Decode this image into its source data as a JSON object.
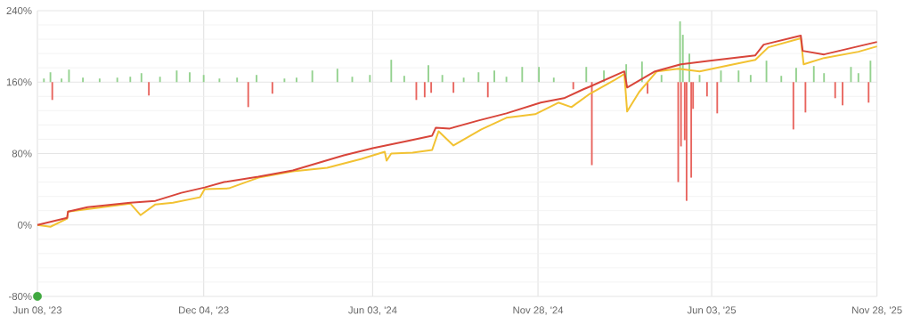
{
  "chart_data": {
    "type": "line",
    "xlim": [
      "2023-06-08",
      "2025-11-28"
    ],
    "ylim": [
      -80,
      240
    ],
    "xticks": [
      {
        "value": "2023-06-08",
        "label": "Jun 08, '23"
      },
      {
        "value": "2023-12-04",
        "label": "Dec 04, '23"
      },
      {
        "value": "2024-06-03",
        "label": "Jun 03, '24"
      },
      {
        "value": "2024-11-28",
        "label": "Nov 28, '24"
      },
      {
        "value": "2025-06-03",
        "label": "Jun 03, '25"
      },
      {
        "value": "2025-11-28",
        "label": "Nov 28, '25"
      }
    ],
    "yticks": [
      {
        "value": -80,
        "label": "-80%"
      },
      {
        "value": 0,
        "label": "0%"
      },
      {
        "value": 80,
        "label": "80%"
      },
      {
        "value": 160,
        "label": "160%"
      },
      {
        "value": 240,
        "label": "240%"
      }
    ],
    "grid": true,
    "series": [
      {
        "type": "bar",
        "color": "#93d18e",
        "x": [
          "2023-06-15",
          "2023-06-22",
          "2023-07-04",
          "2023-07-12",
          "2023-07-27",
          "2023-08-14",
          "2023-09-02",
          "2023-09-16",
          "2023-09-28",
          "2023-10-18",
          "2023-11-05",
          "2023-11-19",
          "2023-12-04",
          "2023-12-21",
          "2024-01-09",
          "2024-01-30",
          "2024-02-29",
          "2024-03-13",
          "2024-03-30",
          "2024-04-26",
          "2024-05-12",
          "2024-05-31",
          "2024-06-23",
          "2024-07-07",
          "2024-08-02",
          "2024-08-17",
          "2024-09-09",
          "2024-09-25",
          "2024-10-12",
          "2024-10-25",
          "2024-11-11",
          "2024-11-29",
          "2024-12-15",
          "2025-01-19",
          "2025-02-07",
          "2025-03-03",
          "2025-03-20",
          "2025-04-10",
          "2025-04-30",
          "2025-05-03",
          "2025-05-10",
          "2025-05-21",
          "2025-06-13",
          "2025-07-02",
          "2025-07-15",
          "2025-08-01",
          "2025-08-17",
          "2025-09-02",
          "2025-09-21",
          "2025-10-02",
          "2025-10-31",
          "2025-11-08",
          "2025-11-21"
        ],
        "base": [
          160,
          160,
          160,
          160,
          160,
          160,
          160,
          160,
          160,
          160,
          160,
          160,
          160,
          160,
          160,
          160,
          160,
          160,
          160,
          160,
          160,
          160,
          160,
          160,
          160,
          160,
          160,
          160,
          160,
          160,
          160,
          160,
          160,
          160,
          160,
          160,
          160,
          160,
          160,
          160,
          160,
          160,
          160,
          160,
          160,
          160,
          160,
          160,
          160,
          160,
          160,
          160,
          160
        ],
        "values": [
          4,
          11,
          4,
          14,
          5,
          4,
          5,
          6,
          10,
          6,
          13,
          11,
          8,
          4,
          5,
          8,
          4,
          5,
          13,
          15,
          6,
          8,
          25,
          7,
          19,
          8,
          5,
          11,
          13,
          6,
          17,
          17,
          5,
          17,
          13,
          20,
          23,
          8,
          68,
          53,
          32,
          8,
          13,
          13,
          8,
          24,
          7,
          16,
          18,
          10,
          17,
          10,
          24
        ]
      },
      {
        "type": "bar",
        "color": "#e8645e",
        "x": [
          "2023-06-24",
          "2023-10-06",
          "2024-01-21",
          "2024-02-16",
          "2024-07-20",
          "2024-07-29",
          "2024-08-05",
          "2024-08-29",
          "2024-10-05",
          "2025-01-05",
          "2025-01-25",
          "2025-03-26",
          "2025-04-28",
          "2025-05-01",
          "2025-05-05",
          "2025-05-07",
          "2025-05-12",
          "2025-05-14",
          "2025-05-29",
          "2025-06-09",
          "2025-08-30",
          "2025-09-12",
          "2025-10-14",
          "2025-10-22",
          "2025-11-19"
        ],
        "base": [
          160,
          160,
          160,
          160,
          160,
          160,
          160,
          160,
          160,
          160,
          160,
          160,
          160,
          160,
          160,
          160,
          160,
          160,
          160,
          160,
          160,
          160,
          160,
          160,
          160
        ],
        "values": [
          -20,
          -15,
          -28,
          -13,
          -20,
          -17,
          -12,
          -12,
          -17,
          -8,
          -93,
          -13,
          -112,
          -72,
          -65,
          -133,
          -107,
          -30,
          -16,
          -35,
          -53,
          -34,
          -18,
          -26,
          -23
        ]
      },
      {
        "color": "#f2c232",
        "x": [
          "2023-06-08",
          "2023-06-22",
          "2023-07-10",
          "2023-07-11",
          "2023-09-16",
          "2023-09-27",
          "2023-10-13",
          "2023-11-01",
          "2023-11-30",
          "2023-12-05",
          "2023-12-31",
          "2024-02-01",
          "2024-03-09",
          "2024-04-15",
          "2024-05-22",
          "2024-06-16",
          "2024-06-18",
          "2024-06-23",
          "2024-07-16",
          "2024-08-06",
          "2024-08-13",
          "2024-08-29",
          "2024-09-28",
          "2024-10-25",
          "2024-11-25",
          "2024-12-20",
          "2025-01-03",
          "2025-01-23",
          "2025-02-18",
          "2025-03-01",
          "2025-03-04",
          "2025-03-17",
          "2025-04-05",
          "2025-04-28",
          "2025-05-21",
          "2025-06-22",
          "2025-07-20",
          "2025-08-03",
          "2025-09-07",
          "2025-09-10",
          "2025-10-02",
          "2025-11-08",
          "2025-11-28"
        ],
        "values": [
          0,
          -2,
          7,
          15,
          24,
          11,
          23,
          25,
          31,
          40,
          41,
          53,
          60,
          64,
          74,
          82,
          72,
          80,
          81,
          84,
          105,
          89,
          107,
          120,
          124,
          137,
          132,
          147,
          162,
          169,
          127,
          149,
          172,
          175,
          172,
          179,
          185,
          199,
          209,
          180,
          187,
          194,
          200
        ]
      },
      {
        "color": "#d8453a",
        "x": [
          "2023-06-08",
          "2023-07-10",
          "2023-07-11",
          "2023-08-01",
          "2023-09-16",
          "2023-10-13",
          "2023-11-10",
          "2023-12-05",
          "2023-12-26",
          "2024-02-01",
          "2024-03-09",
          "2024-05-03",
          "2024-06-03",
          "2024-07-10",
          "2024-08-06",
          "2024-08-10",
          "2024-08-25",
          "2024-09-25",
          "2024-10-25",
          "2024-12-01",
          "2024-12-26",
          "2025-01-16",
          "2025-01-23",
          "2025-03-01",
          "2025-03-04",
          "2025-04-03",
          "2025-05-01",
          "2025-06-01",
          "2025-07-20",
          "2025-07-29",
          "2025-09-07",
          "2025-09-09",
          "2025-10-02",
          "2025-11-28"
        ],
        "values": [
          0,
          8,
          15,
          20,
          25,
          27,
          36,
          42,
          48,
          54,
          61,
          78,
          86,
          94,
          100,
          109,
          108,
          117,
          125,
          137,
          142,
          152,
          155,
          172,
          154,
          172,
          180,
          184,
          190,
          202,
          212,
          195,
          191,
          205
        ]
      },
      {
        "type": "scatter",
        "color": "#3fa83f",
        "marker": "circle",
        "x": [
          "2023-06-08"
        ],
        "values": [
          -80
        ]
      }
    ]
  }
}
